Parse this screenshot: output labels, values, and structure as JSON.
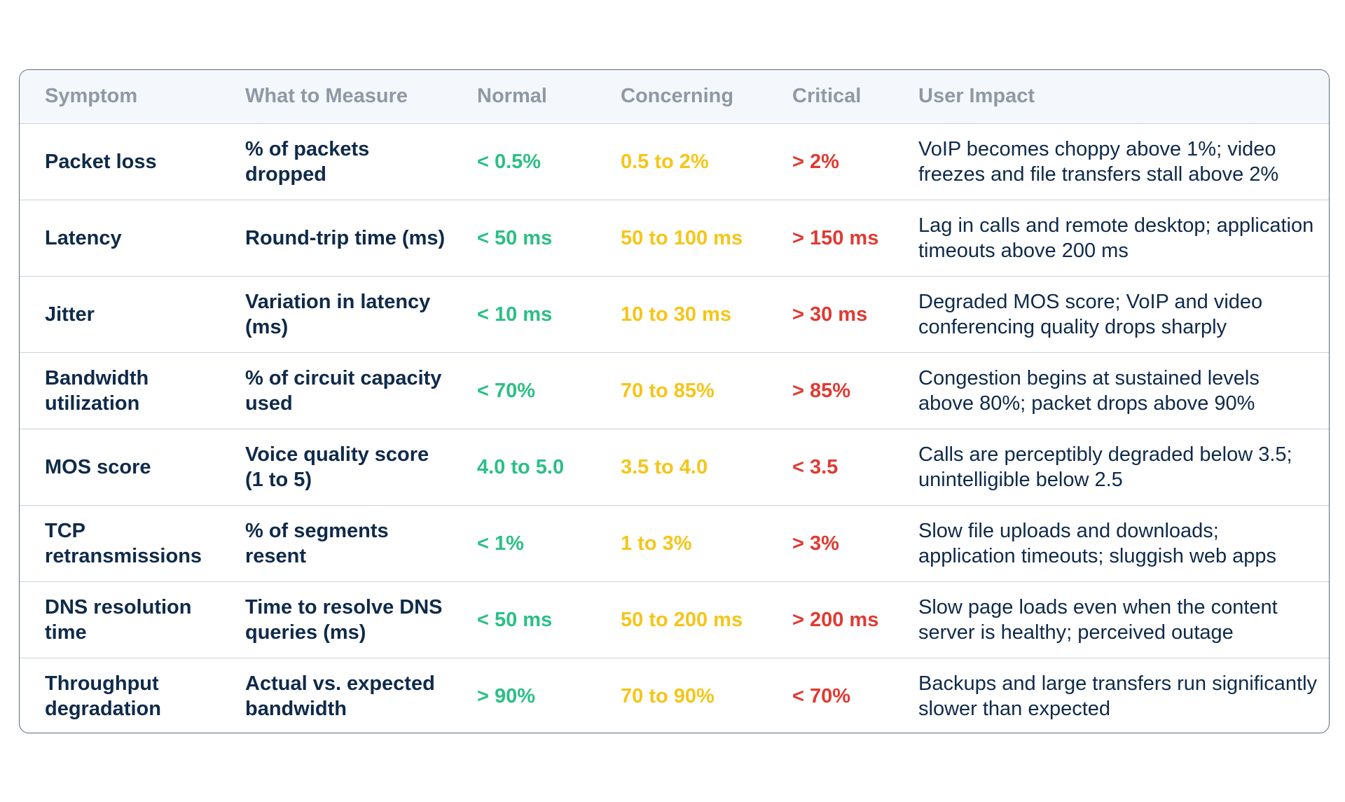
{
  "table": {
    "headers": [
      "Symptom",
      "What to Measure",
      "Normal",
      "Concerning",
      "Critical",
      "User Impact"
    ],
    "rows": [
      {
        "symptom": "Packet loss",
        "measure": "% of packets dropped",
        "normal": "< 0.5%",
        "concerning": "0.5 to 2%",
        "critical": "> 2%",
        "impact": "VoIP becomes choppy above 1%; video freezes and file transfers stall above 2%"
      },
      {
        "symptom": "Latency",
        "measure": "Round-trip time (ms)",
        "normal": "< 50 ms",
        "concerning": "50 to 100 ms",
        "critical": "> 150 ms",
        "impact": "Lag in calls and remote desktop; application timeouts above 200 ms"
      },
      {
        "symptom": "Jitter",
        "measure": "Variation in latency (ms)",
        "normal": "< 10 ms",
        "concerning": "10 to 30 ms",
        "critical": "> 30 ms",
        "impact": "Degraded MOS score; VoIP and video conferencing quality drops sharply"
      },
      {
        "symptom": "Bandwidth utilization",
        "measure": "% of circuit capacity used",
        "normal": "< 70%",
        "concerning": "70 to 85%",
        "critical": "> 85%",
        "impact": "Congestion begins at sustained levels above 80%; packet drops above 90%"
      },
      {
        "symptom": "MOS score",
        "measure": "Voice quality score (1 to 5)",
        "normal": "4.0 to 5.0",
        "concerning": "3.5 to 4.0",
        "critical": "< 3.5",
        "impact": "Calls are perceptibly degraded below 3.5; unintelligible below 2.5"
      },
      {
        "symptom": "TCP retransmissions",
        "measure": "% of segments resent",
        "normal": "< 1%",
        "concerning": "1 to 3%",
        "critical": "> 3%",
        "impact": "Slow file uploads and downloads; application timeouts; sluggish web apps"
      },
      {
        "symptom": "DNS resolution time",
        "measure": "Time to resolve DNS queries (ms)",
        "normal": "< 50 ms",
        "concerning": "50 to 200 ms",
        "critical": "> 200 ms",
        "impact": "Slow page loads even when the content server is healthy; perceived outage"
      },
      {
        "symptom": "Throughput degradation",
        "measure": "Actual vs. expected bandwidth",
        "normal": "> 90%",
        "concerning": "70 to 90%",
        "critical": "< 70%",
        "impact": "Backups and large transfers run significantly slower than expected"
      }
    ]
  },
  "colors": {
    "normal": "#2bbf85",
    "concerning": "#f5c518",
    "critical": "#e03a32",
    "text": "#0f2a4a",
    "header_text": "#8f99a6",
    "header_bg": "#f4f7fb",
    "border": "#5b6b7d"
  }
}
